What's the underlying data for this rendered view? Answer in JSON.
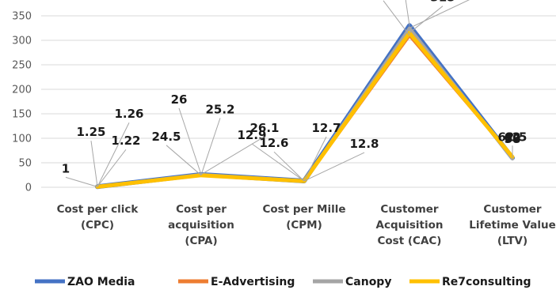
{
  "chart_data": {
    "type": "line",
    "categories": [
      [
        "Cost per click",
        "(CPC)"
      ],
      [
        "Cost per",
        "acquisition",
        "(CPA)"
      ],
      [
        "Cost per Mille",
        "(CPM)"
      ],
      [
        "Customer",
        "Acquisition",
        "Cost (CAC)"
      ],
      [
        "Customer",
        "Lifetime Value",
        "(LTV)"
      ]
    ],
    "series": [
      {
        "name": "ZAO Media",
        "color": "#4472c4",
        "values": [
          1.25,
          26,
          12.9,
          330,
          60
        ]
      },
      {
        "name": "E-Advertising",
        "color": "#ed7d31",
        "values": [
          1.22,
          25.2,
          12.7,
          310,
          62.5
        ]
      },
      {
        "name": "Canopy",
        "color": "#a5a5a5",
        "values": [
          1.26,
          26.1,
          12.8,
          325,
          58
        ]
      },
      {
        "name": "Re7consulting",
        "color": "#ffc000",
        "values": [
          1,
          24.5,
          12.6,
          315,
          62
        ]
      }
    ],
    "ylim": [
      0,
      350
    ],
    "yticks": [
      0,
      50,
      100,
      150,
      200,
      250,
      300,
      350
    ],
    "grid": true,
    "legend": "bottom",
    "title": "",
    "xlabel": "",
    "ylabel": ""
  }
}
